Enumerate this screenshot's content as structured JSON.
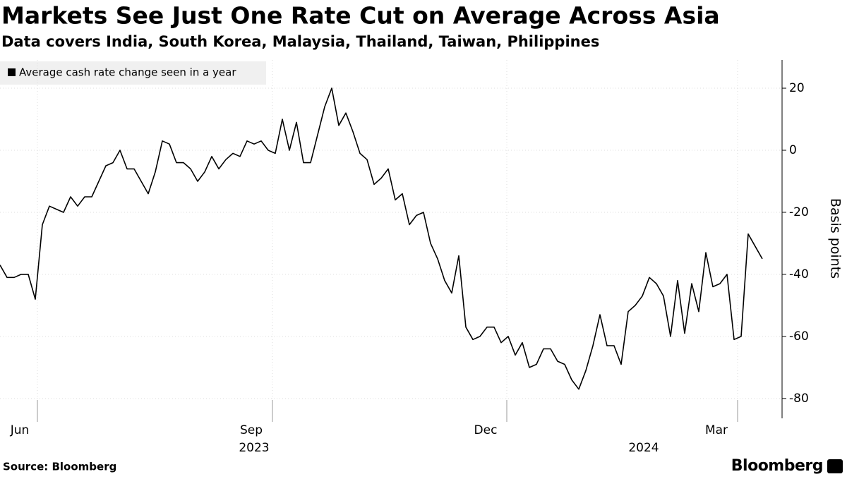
{
  "chart_data": {
    "type": "line",
    "title": "Markets See Just One Rate Cut on Average Across Asia",
    "subtitle": "Data covers India, South Korea, Malaysia, Thailand, Taiwan, Philippines",
    "y_axis_label": "Basis points",
    "source": "Source: Bloomberg",
    "brand": "Bloomberg",
    "legend_position": "top-left",
    "grid": true,
    "series": [
      {
        "name": "Average cash rate change seen in a year",
        "color": "#000000",
        "values": [
          -37,
          -41,
          -41,
          -40,
          -40,
          -48,
          -24,
          -18,
          -19,
          -20,
          -15,
          -18,
          -15,
          -15,
          -10,
          -5,
          -4,
          0,
          -6,
          -6,
          -10,
          -14,
          -7,
          3,
          2,
          -4,
          -4,
          -6,
          -10,
          -7,
          -2,
          -6,
          -3,
          -1,
          -2,
          3,
          2,
          3,
          0,
          -1,
          10,
          0,
          9,
          -4,
          -4,
          5,
          14,
          20,
          8,
          12,
          6,
          -1,
          -3,
          -11,
          -9,
          -6,
          -16,
          -14,
          -24,
          -21,
          -20,
          -30,
          -35,
          -42,
          -46,
          -34,
          -57,
          -61,
          -60,
          -57,
          -57,
          -62,
          -60,
          -66,
          -62,
          -70,
          -69,
          -64,
          -64,
          -68,
          -69,
          -74,
          -77,
          -71,
          -63,
          -53,
          -63,
          -63,
          -69,
          -52,
          -50,
          -47,
          -41,
          -43,
          -47,
          -60,
          -42,
          -59,
          -43,
          -52,
          -33,
          -44,
          -43,
          -40,
          -61,
          -60,
          -27,
          -31,
          -35
        ]
      }
    ],
    "xlim": [
      0,
      110.8
    ],
    "xticks": [
      {
        "value": 5.3,
        "label": "Jun"
      },
      {
        "value": 38.6,
        "label": "Sep"
      },
      {
        "value": 71.8,
        "label": "Dec"
      },
      {
        "value": 104.5,
        "label": "Mar"
      }
    ],
    "year_labels": [
      {
        "value": 36,
        "label": "2023"
      },
      {
        "value": 91.2,
        "label": "2024"
      }
    ],
    "ylim": [
      -86.4,
      29.1
    ],
    "yticks": [
      20,
      0,
      -20,
      -40,
      -60,
      -80
    ]
  }
}
